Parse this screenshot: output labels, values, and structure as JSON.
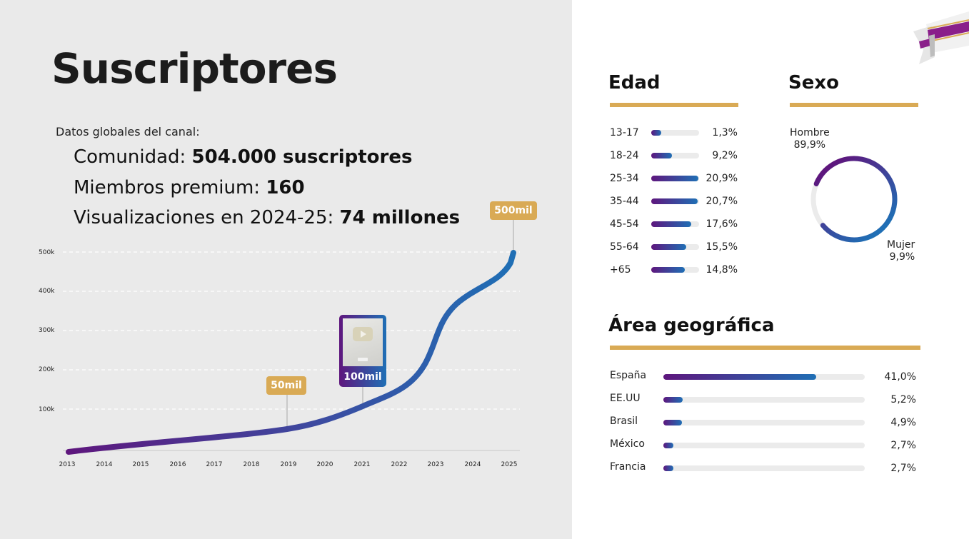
{
  "header": {
    "title": "Suscriptores",
    "subtitle": "Datos globales del canal:",
    "stats": [
      {
        "label": "Comunidad: ",
        "value": "504.000 suscriptores"
      },
      {
        "label": "Miembros premium: ",
        "value": "160"
      },
      {
        "label": "Visualizaciones en 2024-25: ",
        "value": "74 millones"
      }
    ]
  },
  "colors": {
    "gold": "#d9aa55",
    "gradient_start": "#5e167d",
    "gradient_end": "#1f6fb5",
    "left_bg": "#eaeaea",
    "track": "#ebebeb"
  },
  "milestones": [
    {
      "label": "50mil",
      "year": 2019
    },
    {
      "label": "100mil",
      "year": 2021,
      "icon": "youtube-silver-play-button-icon"
    },
    {
      "label": "500mil",
      "year": 2025
    }
  ],
  "chart_data": [
    {
      "type": "line",
      "title": "Suscriptores",
      "x": [
        2013,
        2014,
        2015,
        2016,
        2017,
        2018,
        2019,
        2020,
        2021,
        2022,
        2023,
        2024,
        2025
      ],
      "series": [
        {
          "name": "Suscriptores",
          "values": [
            0,
            7000,
            14000,
            21000,
            28000,
            36000,
            50000,
            72000,
            110000,
            160000,
            325000,
            415000,
            500000
          ]
        }
      ],
      "xlabel": "",
      "ylabel": "",
      "yticks": [
        "100k",
        "200k",
        "300k",
        "400k",
        "500k"
      ],
      "xticks": [
        "2013",
        "2014",
        "2015",
        "2016",
        "2017",
        "2018",
        "2019",
        "2020",
        "2021",
        "2022",
        "2023",
        "2024",
        "2025"
      ],
      "ylim": [
        0,
        500000
      ],
      "grid": "horizontal dashed",
      "annotations": [
        "50mil (2019)",
        "100mil (2021)",
        "500mil (2025)"
      ]
    },
    {
      "type": "bar",
      "title": "Edad",
      "categories": [
        "13-17",
        "18-24",
        "25-34",
        "35-44",
        "45-54",
        "55-64",
        "+65"
      ],
      "values": [
        1.3,
        9.2,
        20.9,
        20.7,
        17.6,
        15.5,
        14.8
      ],
      "labels": [
        "1,3%",
        "9,2%",
        "20,9%",
        "20,7%",
        "17,6%",
        "15,5%",
        "14,8%"
      ],
      "orientation": "horizontal"
    },
    {
      "type": "pie",
      "title": "Sexo",
      "categories": [
        "Hombre",
        "Mujer"
      ],
      "values": [
        89.9,
        9.9
      ],
      "labels": [
        "89,9%",
        "9,9%"
      ],
      "style": "donut"
    },
    {
      "type": "bar",
      "title": "Área geográfica",
      "categories": [
        "España",
        "EE.UU",
        "Brasil",
        "México",
        "Francia"
      ],
      "values": [
        41.0,
        5.2,
        4.9,
        2.7,
        2.7
      ],
      "labels": [
        "41,0%",
        "5,2%",
        "4,9%",
        "2,7%",
        "2,7%"
      ],
      "orientation": "horizontal"
    }
  ],
  "age": {
    "title": "Edad",
    "rows": [
      {
        "label": "13-17",
        "value": "1,3%",
        "pct": 1.3
      },
      {
        "label": "18-24",
        "value": "9,2%",
        "pct": 9.2
      },
      {
        "label": "25-34",
        "value": "20,9%",
        "pct": 20.9
      },
      {
        "label": "35-44",
        "value": "20,7%",
        "pct": 20.7
      },
      {
        "label": "45-54",
        "value": "17,6%",
        "pct": 17.6
      },
      {
        "label": "55-64",
        "value": "15,5%",
        "pct": 15.5
      },
      {
        "label": "+65",
        "value": "14,8%",
        "pct": 14.8
      }
    ]
  },
  "sex": {
    "title": "Sexo",
    "male_label": "Hombre",
    "male_value": "89,9%",
    "female_label": "Mujer",
    "female_value": "9,9%"
  },
  "geo": {
    "title": "Área geográfica",
    "rows": [
      {
        "label": "España",
        "value": "41,0%",
        "pct": 41.0
      },
      {
        "label": "EE.UU",
        "value": "5,2%",
        "pct": 5.2
      },
      {
        "label": "Brasil",
        "value": "4,9%",
        "pct": 4.9
      },
      {
        "label": "México",
        "value": "2,7%",
        "pct": 2.7
      },
      {
        "label": "Francia",
        "value": "2,7%",
        "pct": 2.7
      }
    ]
  }
}
